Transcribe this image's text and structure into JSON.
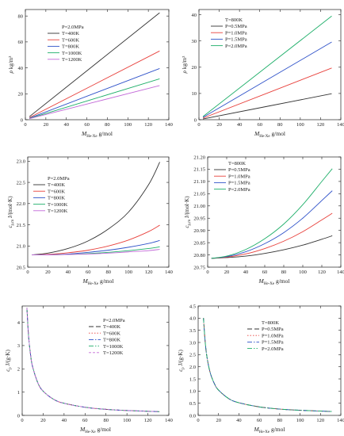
{
  "colors": {
    "black": "#333333",
    "red": "#e8413c",
    "blue": "#2f52c9",
    "green": "#1faf6a",
    "purple": "#c36ad8"
  },
  "chart_data": [
    {
      "id": "rho-temp",
      "type": "line",
      "xlabel_main": "M",
      "xlabel_sub": "He-Xe",
      "xlabel_unit": " g/mol",
      "ylabel_main": "ρ",
      "ylabel_unit": " kg/m³",
      "xlim": [
        0,
        140
      ],
      "ylim": [
        0,
        85
      ],
      "xticks": [
        0,
        20,
        40,
        60,
        80,
        100,
        120,
        140
      ],
      "yticks": [
        0,
        20,
        40,
        60,
        80
      ],
      "legend_title": "P=2.0MPa",
      "series": [
        {
          "name": "T=400K",
          "color": "black",
          "dash": "",
          "x": [
            4,
            131
          ],
          "y": [
            2.4,
            82.5
          ]
        },
        {
          "name": "T=600K",
          "color": "red",
          "dash": "",
          "x": [
            4,
            131
          ],
          "y": [
            1.6,
            53.0
          ]
        },
        {
          "name": "T=800K",
          "color": "blue",
          "dash": "",
          "x": [
            4,
            131
          ],
          "y": [
            1.2,
            39.5
          ]
        },
        {
          "name": "T=1000K",
          "color": "green",
          "dash": "",
          "x": [
            4,
            131
          ],
          "y": [
            0.95,
            31.5
          ]
        },
        {
          "name": "T=1200K",
          "color": "purple",
          "dash": "",
          "x": [
            4,
            131
          ],
          "y": [
            0.8,
            26.3
          ]
        }
      ]
    },
    {
      "id": "rho-pres",
      "type": "line",
      "xlabel_main": "M",
      "xlabel_sub": "He-Xe",
      "xlabel_unit": " g/mol",
      "ylabel_main": "ρ",
      "ylabel_unit": " kg/m³",
      "xlim": [
        0,
        140
      ],
      "ylim": [
        0,
        42
      ],
      "xticks": [
        0,
        20,
        40,
        60,
        80,
        100,
        120,
        140
      ],
      "yticks": [
        0,
        10,
        20,
        30,
        40
      ],
      "legend_title": "T=800K",
      "series": [
        {
          "name": "P=0.5MPa",
          "color": "black",
          "dash": "",
          "x": [
            4,
            131
          ],
          "y": [
            0.3,
            9.9
          ]
        },
        {
          "name": "P=1.0MPa",
          "color": "red",
          "dash": "",
          "x": [
            4,
            131
          ],
          "y": [
            0.6,
            19.7
          ]
        },
        {
          "name": "P=1.5MPa",
          "color": "blue",
          "dash": "",
          "x": [
            4,
            131
          ],
          "y": [
            0.9,
            29.6
          ]
        },
        {
          "name": "P=2.0MPa",
          "color": "green",
          "dash": "",
          "x": [
            4,
            131
          ],
          "y": [
            1.2,
            39.5
          ]
        }
      ]
    },
    {
      "id": "cpm-temp",
      "type": "line",
      "xlabel_main": "M",
      "xlabel_sub": "He-Xe",
      "xlabel_unit": " g/mol",
      "ylabel_main": "c",
      "ylabel_sub": "p,m",
      "ylabel_unit": " J/(mol·K)",
      "xlim": [
        0,
        140
      ],
      "ylim": [
        20.5,
        23.1
      ],
      "xticks": [
        0,
        20,
        40,
        60,
        80,
        100,
        120,
        140
      ],
      "yticks": [
        20.5,
        21.0,
        21.5,
        22.0,
        22.5,
        23.0
      ],
      "ytick_decimals": 1,
      "legend_title": "P=2.0MPa",
      "series": [
        {
          "name": "T=400K",
          "color": "black",
          "dash": "",
          "x": [
            4,
            20,
            40,
            60,
            80,
            100,
            120,
            131
          ],
          "y": [
            20.79,
            20.83,
            20.94,
            21.12,
            21.4,
            21.8,
            22.45,
            22.98
          ]
        },
        {
          "name": "T=600K",
          "color": "red",
          "dash": "",
          "x": [
            4,
            20,
            40,
            60,
            80,
            100,
            120,
            131
          ],
          "y": [
            20.79,
            20.8,
            20.84,
            20.9,
            21.0,
            21.14,
            21.34,
            21.49
          ]
        },
        {
          "name": "T=800K",
          "color": "blue",
          "dash": "",
          "x": [
            4,
            20,
            40,
            60,
            80,
            100,
            120,
            131
          ],
          "y": [
            20.79,
            20.79,
            20.81,
            20.85,
            20.9,
            20.97,
            21.06,
            21.13
          ]
        },
        {
          "name": "T=1000K",
          "color": "green",
          "dash": "",
          "x": [
            4,
            20,
            40,
            60,
            80,
            100,
            120,
            131
          ],
          "y": [
            20.79,
            20.79,
            20.8,
            20.82,
            20.85,
            20.89,
            20.94,
            20.98
          ]
        },
        {
          "name": "T=1200K",
          "color": "purple",
          "dash": "",
          "x": [
            4,
            20,
            40,
            60,
            80,
            100,
            120,
            131
          ],
          "y": [
            20.79,
            20.79,
            20.8,
            20.81,
            20.83,
            20.86,
            20.89,
            20.92
          ]
        }
      ]
    },
    {
      "id": "cpm-pres",
      "type": "line",
      "xlabel_main": "M",
      "xlabel_sub": "He-Xe",
      "xlabel_unit": " g/mol",
      "ylabel_main": "c",
      "ylabel_sub": "p,m",
      "ylabel_unit": " J/(mol·K)",
      "xlim": [
        0,
        140
      ],
      "ylim": [
        20.75,
        21.2
      ],
      "xticks": [
        0,
        20,
        40,
        60,
        80,
        100,
        120,
        140
      ],
      "yticks": [
        20.75,
        20.8,
        20.85,
        20.9,
        20.95,
        21.0,
        21.05,
        21.1,
        21.15,
        21.2
      ],
      "ytick_decimals": 2,
      "legend_title": "T=800K",
      "series": [
        {
          "name": "P=0.5MPa",
          "color": "black",
          "dash": "",
          "x": [
            4,
            20,
            40,
            60,
            80,
            100,
            120,
            131
          ],
          "y": [
            20.786,
            20.789,
            20.795,
            20.806,
            20.821,
            20.84,
            20.864,
            20.878
          ]
        },
        {
          "name": "P=1.0MPa",
          "color": "red",
          "dash": "",
          "x": [
            4,
            20,
            40,
            60,
            80,
            100,
            120,
            131
          ],
          "y": [
            20.786,
            20.791,
            20.804,
            20.826,
            20.856,
            20.895,
            20.943,
            20.97
          ]
        },
        {
          "name": "P=1.5MPa",
          "color": "blue",
          "dash": "",
          "x": [
            4,
            20,
            40,
            60,
            80,
            100,
            120,
            131
          ],
          "y": [
            20.786,
            20.793,
            20.813,
            20.846,
            20.891,
            20.95,
            21.022,
            21.062
          ]
        },
        {
          "name": "P=2.0MPa",
          "color": "green",
          "dash": "",
          "x": [
            4,
            20,
            40,
            60,
            80,
            100,
            120,
            131
          ],
          "y": [
            20.786,
            20.795,
            20.822,
            20.866,
            20.926,
            21.005,
            21.1,
            21.152
          ]
        }
      ]
    },
    {
      "id": "cp-temp",
      "type": "line",
      "xlabel_main": "M",
      "xlabel_sub": "He-Xe",
      "xlabel_unit": " g/mol",
      "ylabel_main": "c",
      "ylabel_sub": "p",
      "ylabel_unit": " J/(g·K)",
      "xlim": [
        0,
        140
      ],
      "ylim": [
        0,
        4.7
      ],
      "xticks": [
        0,
        20,
        40,
        60,
        80,
        100,
        120,
        140
      ],
      "yticks": [
        0,
        1,
        2,
        3,
        4
      ],
      "legend_title": "P=2.0MPa",
      "series": [
        {
          "name": "T=400K",
          "color": "black",
          "dash": "6,3",
          "x": [
            4.5,
            6,
            8,
            10,
            15,
            20,
            30,
            40,
            60,
            80,
            100,
            131
          ],
          "y": [
            4.62,
            3.46,
            2.6,
            2.08,
            1.39,
            1.04,
            0.69,
            0.52,
            0.35,
            0.26,
            0.21,
            0.16
          ]
        },
        {
          "name": "T=600K",
          "color": "red",
          "dash": "1.5,2",
          "x": [
            4.5,
            6,
            8,
            10,
            15,
            20,
            30,
            40,
            60,
            80,
            100,
            131
          ],
          "y": [
            4.62,
            3.46,
            2.6,
            2.08,
            1.39,
            1.04,
            0.69,
            0.52,
            0.35,
            0.26,
            0.21,
            0.16
          ]
        },
        {
          "name": "T=800K",
          "color": "blue",
          "dash": "6,2,1.5,2",
          "x": [
            4.5,
            6,
            8,
            10,
            15,
            20,
            30,
            40,
            60,
            80,
            100,
            131
          ],
          "y": [
            4.62,
            3.46,
            2.6,
            2.08,
            1.39,
            1.04,
            0.69,
            0.52,
            0.35,
            0.26,
            0.21,
            0.16
          ]
        },
        {
          "name": "T=1000K",
          "color": "green",
          "dash": "6,2,1.5,2,1.5,2",
          "x": [
            4.5,
            6,
            8,
            10,
            15,
            20,
            30,
            40,
            60,
            80,
            100,
            131
          ],
          "y": [
            4.62,
            3.46,
            2.6,
            2.08,
            1.39,
            1.04,
            0.69,
            0.52,
            0.35,
            0.26,
            0.21,
            0.16
          ]
        },
        {
          "name": "T=1200K",
          "color": "purple",
          "dash": "3,2",
          "x": [
            4.5,
            6,
            8,
            10,
            15,
            20,
            30,
            40,
            60,
            80,
            100,
            131
          ],
          "y": [
            4.62,
            3.46,
            2.6,
            2.08,
            1.39,
            1.04,
            0.69,
            0.52,
            0.35,
            0.26,
            0.21,
            0.16
          ]
        }
      ]
    },
    {
      "id": "cp-pres",
      "type": "line",
      "xlabel_main": "M",
      "xlabel_sub": "He-Xe",
      "xlabel_unit": " g/mol",
      "ylabel_main": "c",
      "ylabel_sub": "p",
      "ylabel_unit": " J/(g·K)",
      "xlim": [
        0,
        140
      ],
      "ylim": [
        0,
        4.5
      ],
      "xticks": [
        0,
        20,
        40,
        60,
        80,
        100,
        120,
        140
      ],
      "yticks": [
        0,
        0.5,
        1.0,
        1.5,
        2.0,
        2.5,
        3.0,
        3.5,
        4.0,
        4.5
      ],
      "ytick_decimals": 1,
      "legend_title": "T=800K",
      "series": [
        {
          "name": "P=0.5MPa",
          "color": "black",
          "dash": "6,3",
          "x": [
            5.2,
            7,
            9,
            12,
            16,
            20,
            30,
            40,
            60,
            80,
            100,
            131
          ],
          "y": [
            4.0,
            2.97,
            2.31,
            1.73,
            1.3,
            1.04,
            0.69,
            0.52,
            0.35,
            0.26,
            0.21,
            0.16
          ]
        },
        {
          "name": "P=1.0MPa",
          "color": "red",
          "dash": "1.5,2",
          "x": [
            5.2,
            7,
            9,
            12,
            16,
            20,
            30,
            40,
            60,
            80,
            100,
            131
          ],
          "y": [
            4.0,
            2.97,
            2.31,
            1.73,
            1.3,
            1.04,
            0.69,
            0.52,
            0.35,
            0.26,
            0.21,
            0.16
          ]
        },
        {
          "name": "P=1.5MPa",
          "color": "blue",
          "dash": "6,2,1.5,2",
          "x": [
            5.2,
            7,
            9,
            12,
            16,
            20,
            30,
            40,
            60,
            80,
            100,
            131
          ],
          "y": [
            4.0,
            2.97,
            2.31,
            1.73,
            1.3,
            1.04,
            0.69,
            0.52,
            0.35,
            0.26,
            0.21,
            0.16
          ]
        },
        {
          "name": "P=2.0MPa",
          "color": "green",
          "dash": "6,2,1.5,2,1.5,2",
          "x": [
            5.2,
            7,
            9,
            12,
            16,
            20,
            30,
            40,
            60,
            80,
            100,
            131
          ],
          "y": [
            4.0,
            2.97,
            2.31,
            1.73,
            1.3,
            1.04,
            0.69,
            0.52,
            0.35,
            0.26,
            0.21,
            0.16
          ]
        }
      ]
    }
  ]
}
